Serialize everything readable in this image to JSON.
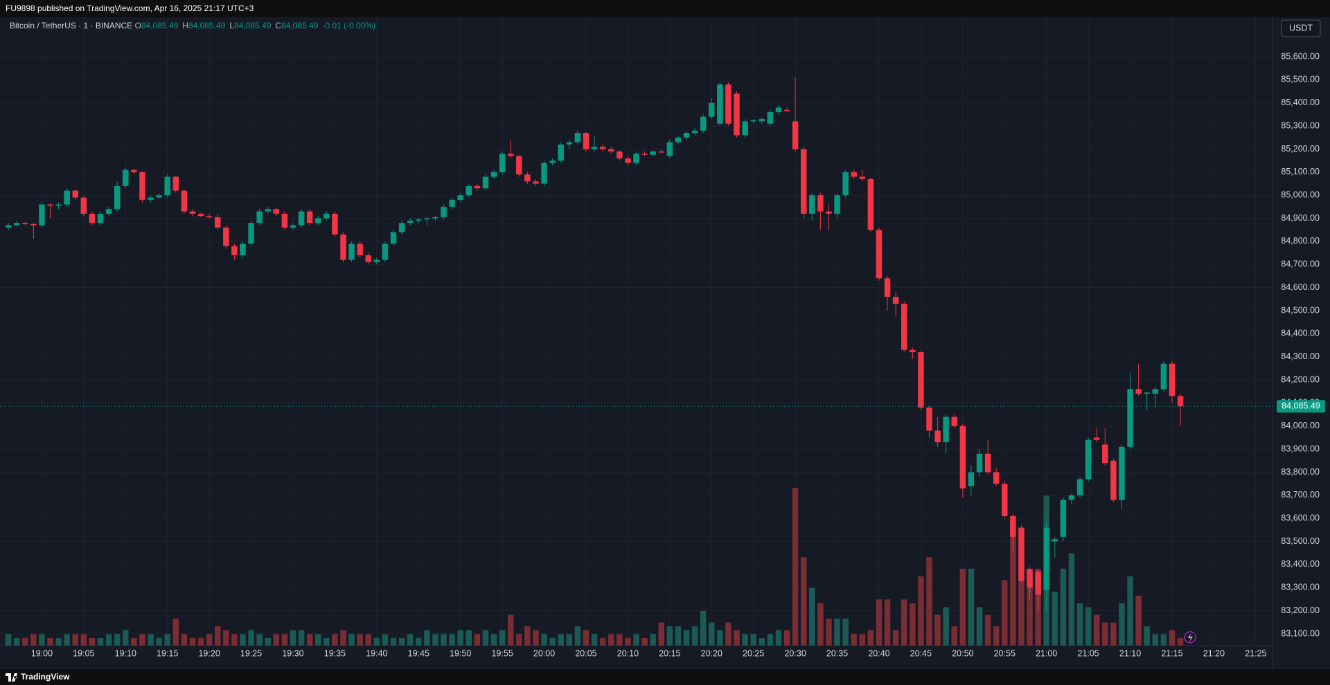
{
  "header": {
    "publisher": "FU9898 published on TradingView.com, Apr 16, 2025 21:17 UTC+3"
  },
  "footer": {
    "brand": "TradingView"
  },
  "chart_data": {
    "type": "candlestick",
    "title": "Bitcoin / TetherUS · 1 · BINANCE",
    "currency": "USDT",
    "ohlc_legend": [
      {
        "key": "O",
        "value": "84,085.49"
      },
      {
        "key": "H",
        "value": "84,085.49"
      },
      {
        "key": "L",
        "value": "84,085.49"
      },
      {
        "key": "C",
        "value": "84,085.49"
      }
    ],
    "change": "-0.01 (-0.00%)",
    "x": [
      "18:56",
      "18:57",
      "18:58",
      "18:59",
      "19:00",
      "19:01",
      "19:02",
      "19:03",
      "19:04",
      "19:05",
      "19:06",
      "19:07",
      "19:08",
      "19:09",
      "19:10",
      "19:11",
      "19:12",
      "19:13",
      "19:14",
      "19:15",
      "19:16",
      "19:17",
      "19:18",
      "19:19",
      "19:20",
      "19:21",
      "19:22",
      "19:23",
      "19:24",
      "19:25",
      "19:26",
      "19:27",
      "19:28",
      "19:29",
      "19:30",
      "19:31",
      "19:32",
      "19:33",
      "19:34",
      "19:35",
      "19:36",
      "19:37",
      "19:38",
      "19:39",
      "19:40",
      "19:41",
      "19:42",
      "19:43",
      "19:44",
      "19:45",
      "19:46",
      "19:47",
      "19:48",
      "19:49",
      "19:50",
      "19:51",
      "19:52",
      "19:53",
      "19:54",
      "19:55",
      "19:56",
      "19:57",
      "19:58",
      "19:59",
      "20:00",
      "20:01",
      "20:02",
      "20:03",
      "20:04",
      "20:05",
      "20:06",
      "20:07",
      "20:08",
      "20:09",
      "20:10",
      "20:11",
      "20:12",
      "20:13",
      "20:14",
      "20:15",
      "20:16",
      "20:17",
      "20:18",
      "20:19",
      "20:20",
      "20:21",
      "20:22",
      "20:23",
      "20:24",
      "20:25",
      "20:26",
      "20:27",
      "20:28",
      "20:29",
      "20:30",
      "20:31",
      "20:32",
      "20:33",
      "20:34",
      "20:35",
      "20:36",
      "20:37",
      "20:38",
      "20:39",
      "20:40",
      "20:41",
      "20:42",
      "20:43",
      "20:44",
      "20:45",
      "20:46",
      "20:47",
      "20:48",
      "20:49",
      "20:50",
      "20:51",
      "20:52",
      "20:53",
      "20:54",
      "20:55",
      "20:56",
      "20:57",
      "20:58",
      "20:59",
      "21:00",
      "21:01",
      "21:02",
      "21:03",
      "21:04",
      "21:05",
      "21:06",
      "21:07",
      "21:08",
      "21:09",
      "21:10",
      "21:11",
      "21:12",
      "21:13",
      "21:14",
      "21:15",
      "21:16"
    ],
    "open": [
      84860,
      84870,
      84880,
      84875,
      84870,
      84960,
      84955,
      84960,
      85020,
      84990,
      84920,
      84880,
      84920,
      84940,
      85040,
      85110,
      85100,
      84980,
      84990,
      85000,
      85080,
      85020,
      84930,
      84920,
      84910,
      84905,
      84860,
      84780,
      84740,
      84790,
      84880,
      84930,
      84940,
      84920,
      84860,
      84870,
      84930,
      84880,
      84900,
      84920,
      84830,
      84720,
      84790,
      84740,
      84710,
      84720,
      84790,
      84840,
      84880,
      84890,
      84895,
      84900,
      84905,
      84950,
      84980,
      85000,
      85040,
      85030,
      85080,
      85100,
      85180,
      85170,
      85090,
      85060,
      85050,
      85140,
      85150,
      85220,
      85230,
      85270,
      85200,
      85210,
      85200,
      85190,
      85160,
      85140,
      85180,
      85175,
      85190,
      85170,
      85230,
      85250,
      85270,
      85280,
      85340,
      85310,
      85480,
      85440,
      85260,
      85320,
      85320,
      85310,
      85360,
      85370,
      85320,
      85200,
      84920,
      85000,
      84930,
      84920,
      85000,
      85100,
      85080,
      85070,
      84850,
      84640,
      84560,
      84530,
      84330,
      84320,
      84080,
      83980,
      83930,
      84040,
      84000,
      83740,
      83800,
      83880,
      83800,
      83750,
      83610,
      83560,
      83380,
      83370,
      83290,
      83500,
      83520,
      83680,
      83700,
      83770,
      83950,
      83920,
      83850,
      83680,
      83910,
      84160,
      84140,
      84140,
      84160,
      84270,
      84130
    ],
    "high": [
      84880,
      84890,
      84885,
      84880,
      84970,
      84965,
      84970,
      85030,
      85025,
      84995,
      84930,
      84930,
      84950,
      85060,
      85120,
      85115,
      85105,
      85000,
      85010,
      85090,
      85085,
      85025,
      84940,
      84925,
      84920,
      84920,
      84870,
      84790,
      84800,
      84890,
      84940,
      84950,
      84945,
      84930,
      84880,
      84940,
      84940,
      84910,
      84930,
      84930,
      84840,
      84800,
      84800,
      84750,
      84730,
      84800,
      84850,
      84890,
      84900,
      84900,
      84905,
      84910,
      84960,
      84990,
      85010,
      85050,
      85050,
      85090,
      85110,
      85190,
      85240,
      85175,
      85100,
      85070,
      85150,
      85160,
      85230,
      85240,
      85280,
      85275,
      85260,
      85220,
      85210,
      85195,
      85170,
      85190,
      85190,
      85195,
      85200,
      85240,
      85260,
      85280,
      85290,
      85350,
      85420,
      85490,
      85490,
      85450,
      85330,
      85330,
      85335,
      85370,
      85390,
      85380,
      85510,
      85210,
      85010,
      85010,
      84960,
      85010,
      85110,
      85110,
      85110,
      85075,
      84860,
      84650,
      84580,
      84540,
      84340,
      84325,
      84090,
      84040,
      84050,
      84050,
      84010,
      83830,
      83900,
      83940,
      83820,
      83760,
      83620,
      83570,
      83390,
      83380,
      83580,
      83520,
      83690,
      83710,
      83780,
      83950,
      83990,
      83990,
      83860,
      83920,
      84230,
      84270,
      84150,
      84170,
      84280,
      84280,
      84140
    ],
    "low": [
      84850,
      84865,
      84870,
      84810,
      84860,
      84900,
      84940,
      84950,
      84980,
      84910,
      84870,
      84870,
      84910,
      84930,
      85030,
      85090,
      84970,
      84970,
      84985,
      84990,
      85010,
      84920,
      84910,
      84905,
      84900,
      84850,
      84770,
      84720,
      84730,
      84780,
      84870,
      84920,
      84910,
      84850,
      84850,
      84860,
      84870,
      84870,
      84890,
      84820,
      84710,
      84710,
      84730,
      84700,
      84700,
      84710,
      84780,
      84830,
      84870,
      84880,
      84870,
      84890,
      84895,
      84940,
      84970,
      84990,
      85020,
      85020,
      85070,
      85090,
      85160,
      85080,
      85050,
      85040,
      85040,
      85130,
      85140,
      85200,
      85220,
      85190,
      85190,
      85190,
      85180,
      85150,
      85130,
      85130,
      85170,
      85170,
      85180,
      85160,
      85220,
      85240,
      85260,
      85270,
      85330,
      85300,
      85300,
      85250,
      85250,
      85310,
      85310,
      85300,
      85350,
      85360,
      85190,
      84900,
      84890,
      84850,
      84850,
      84900,
      84990,
      85070,
      85060,
      84840,
      84630,
      84500,
      84480,
      84320,
      84290,
      84070,
      83950,
      83910,
      83880,
      83990,
      83690,
      83700,
      83780,
      83790,
      83740,
      83600,
      83460,
      83320,
      83250,
      83200,
      83200,
      83430,
      83500,
      83660,
      83690,
      83760,
      83930,
      83830,
      83670,
      83640,
      83900,
      84130,
      84070,
      84080,
      84150,
      84100,
      84000
    ],
    "close": [
      84870,
      84880,
      84875,
      84870,
      84960,
      84955,
      84960,
      85020,
      84990,
      84920,
      84880,
      84920,
      84940,
      85040,
      85110,
      85100,
      84980,
      84990,
      85000,
      85080,
      85020,
      84930,
      84920,
      84910,
      84905,
      84860,
      84780,
      84740,
      84790,
      84880,
      84930,
      84940,
      84920,
      84860,
      84870,
      84930,
      84880,
      84900,
      84920,
      84830,
      84720,
      84790,
      84740,
      84710,
      84720,
      84790,
      84840,
      84880,
      84890,
      84895,
      84900,
      84905,
      84950,
      84980,
      85000,
      85040,
      85030,
      85080,
      85100,
      85180,
      85170,
      85090,
      85060,
      85050,
      85140,
      85150,
      85220,
      85230,
      85270,
      85200,
      85210,
      85200,
      85190,
      85160,
      85140,
      85180,
      85175,
      85190,
      85185,
      85230,
      85250,
      85270,
      85280,
      85340,
      85400,
      85480,
      85310,
      85260,
      85320,
      85325,
      85330,
      85360,
      85380,
      85365,
      85200,
      84920,
      85000,
      84930,
      84920,
      85000,
      85100,
      85080,
      85070,
      84850,
      84640,
      84560,
      84530,
      84330,
      84320,
      84080,
      83980,
      83930,
      84040,
      84000,
      83730,
      83800,
      83880,
      83800,
      83750,
      83610,
      83520,
      83330,
      83300,
      83270,
      83560,
      83510,
      83680,
      83700,
      83770,
      83940,
      83940,
      83840,
      83680,
      83910,
      84160,
      84140,
      84145,
      84160,
      84270,
      84130,
      84085.49
    ],
    "volume": [
      3,
      2,
      2,
      3,
      3,
      2,
      2,
      3,
      3,
      3,
      2,
      2,
      3,
      3,
      4,
      2,
      3,
      3,
      2,
      3,
      7,
      3,
      2,
      2,
      3,
      5,
      4,
      3,
      3,
      4,
      3,
      2,
      3,
      3,
      4,
      4,
      3,
      3,
      2,
      3,
      4,
      3,
      3,
      3,
      2,
      3,
      2,
      2,
      3,
      2,
      4,
      3,
      3,
      3,
      4,
      4,
      3,
      4,
      3,
      4,
      8,
      3,
      5,
      4,
      3,
      2,
      3,
      3,
      5,
      4,
      3,
      2,
      3,
      3,
      2,
      3,
      2,
      3,
      6,
      5,
      5,
      4,
      5,
      9,
      6,
      4,
      6,
      4,
      3,
      3,
      2,
      3,
      4,
      4,
      41,
      23,
      15,
      11,
      7,
      7,
      7,
      3,
      3,
      4,
      12,
      12,
      4,
      12,
      11,
      18,
      23,
      8,
      10,
      5,
      20,
      20,
      10,
      8,
      5,
      17,
      30,
      26,
      20,
      20,
      39,
      14,
      20,
      24,
      11,
      10,
      8,
      6,
      6,
      11,
      18,
      13,
      5,
      3,
      3,
      4,
      2
    ],
    "up_color": "#089981",
    "down_color": "#f23645",
    "volume_up_color": "#1b5b55",
    "volume_down_color": "#7a2d34",
    "xlim": [
      "18:55",
      "21:27"
    ],
    "xticks": [
      "19:00",
      "19:05",
      "19:10",
      "19:15",
      "19:20",
      "19:25",
      "19:30",
      "19:35",
      "19:40",
      "19:45",
      "19:50",
      "19:55",
      "20:00",
      "20:05",
      "20:10",
      "20:15",
      "20:20",
      "20:25",
      "20:30",
      "20:35",
      "20:40",
      "20:45",
      "20:50",
      "20:55",
      "21:00",
      "21:05",
      "21:10",
      "21:15",
      "21:20",
      "21:25"
    ],
    "ylim": [
      83049,
      85771
    ],
    "yticks": [
      {
        "value": 83100,
        "label": "83,100.00"
      },
      {
        "value": 83200,
        "label": "83,200.00"
      },
      {
        "value": 83300,
        "label": "83,300.00"
      },
      {
        "value": 83400,
        "label": "83,400.00"
      },
      {
        "value": 83500,
        "label": "83,500.00"
      },
      {
        "value": 83600,
        "label": "83,600.00"
      },
      {
        "value": 83700,
        "label": "83,700.00"
      },
      {
        "value": 83800,
        "label": "83,800.00"
      },
      {
        "value": 83900,
        "label": "83,900.00"
      },
      {
        "value": 84000,
        "label": "84,000.00"
      },
      {
        "value": 84100,
        "label": "84,100.00"
      },
      {
        "value": 84200,
        "label": "84,200.00"
      },
      {
        "value": 84300,
        "label": "84,300.00"
      },
      {
        "value": 84400,
        "label": "84,400.00"
      },
      {
        "value": 84500,
        "label": "84,500.00"
      },
      {
        "value": 84600,
        "label": "84,600.00"
      },
      {
        "value": 84700,
        "label": "84,700.00"
      },
      {
        "value": 84800,
        "label": "84,800.00"
      },
      {
        "value": 84900,
        "label": "84,900.00"
      },
      {
        "value": 85000,
        "label": "85,000.00"
      },
      {
        "value": 85100,
        "label": "85,100.00"
      },
      {
        "value": 85200,
        "label": "85,200.00"
      },
      {
        "value": 85300,
        "label": "85,300.00"
      },
      {
        "value": 85400,
        "label": "85,400.00"
      },
      {
        "value": 85500,
        "label": "85,500.00"
      },
      {
        "value": 85600,
        "label": "85,600.00"
      }
    ],
    "vlim": [
      0,
      45
    ],
    "last_price": {
      "value": 84085.49,
      "label": "84,085.49"
    },
    "grid": true
  }
}
